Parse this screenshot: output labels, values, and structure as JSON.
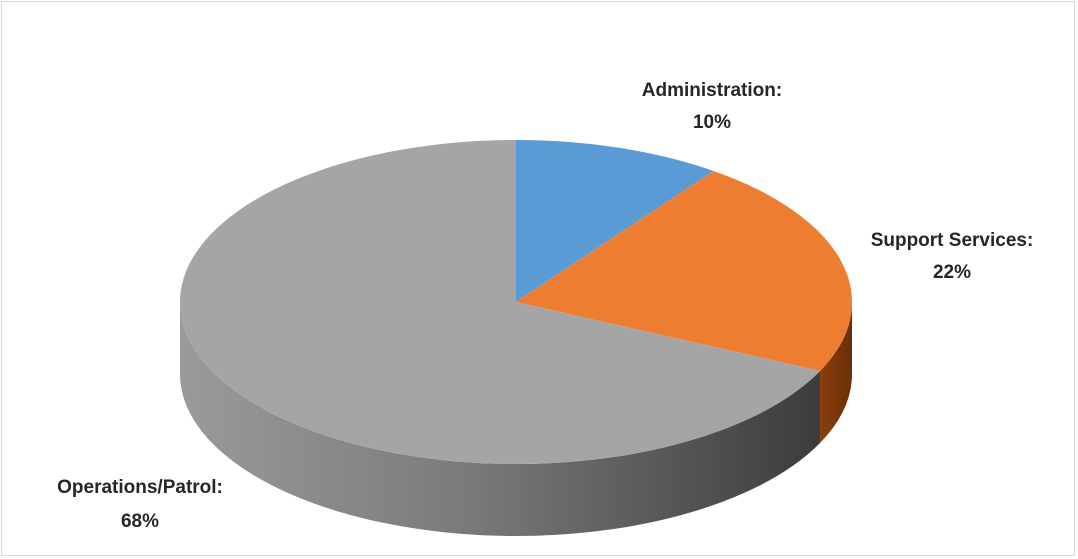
{
  "chart_data": {
    "type": "pie",
    "title": "",
    "legend": "none",
    "slices": [
      {
        "name": "Administration",
        "value": 10,
        "label": "Administration:",
        "pct": "10%",
        "color": "#5b9bd5"
      },
      {
        "name": "Support Services",
        "value": 22,
        "label": "Support Services:",
        "pct": "22%",
        "color": "#ed7d31"
      },
      {
        "name": "Operations/Patrol",
        "value": 68,
        "label": "Operations/Patrol:",
        "pct": "68%",
        "color": "#a5a5a5"
      }
    ]
  }
}
